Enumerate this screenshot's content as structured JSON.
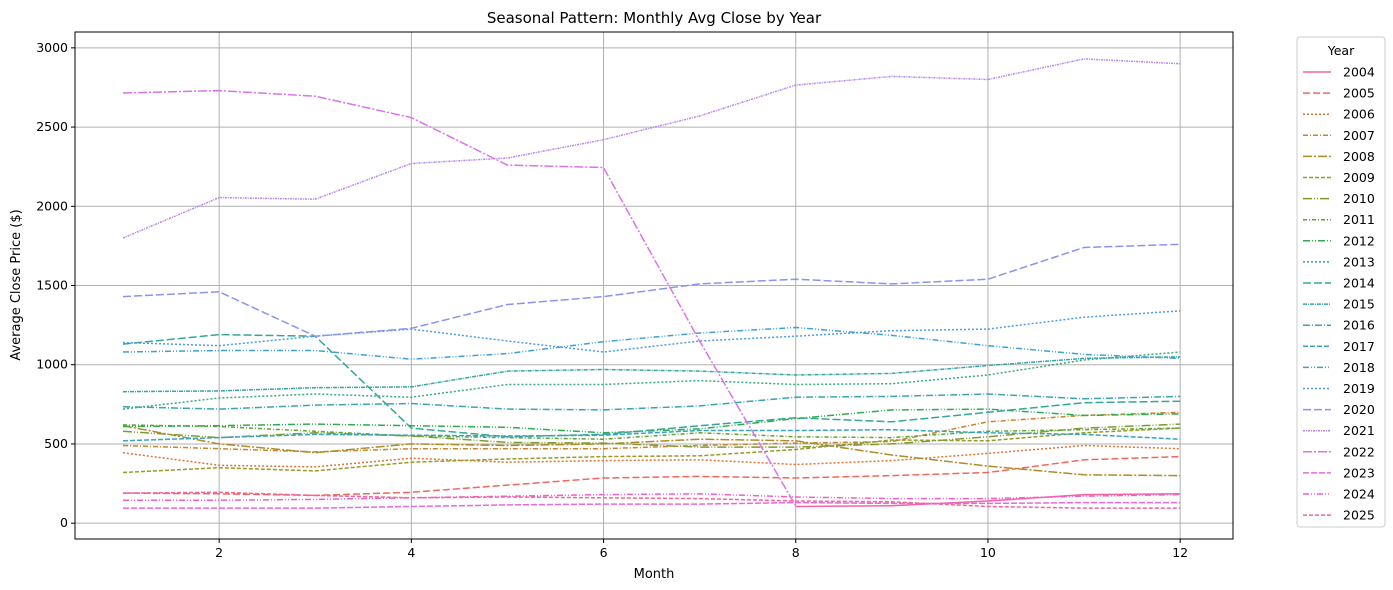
{
  "chart_data": {
    "type": "line",
    "title": "Seasonal Pattern: Monthly Avg Close by Year",
    "xlabel": "Month",
    "ylabel": "Average Close Price ($)",
    "xlim": [
      0.5,
      12.55
    ],
    "ylim": [
      -100,
      3100
    ],
    "xticks": [
      2,
      4,
      6,
      8,
      10,
      12
    ],
    "yticks": [
      0,
      500,
      1000,
      1500,
      2000,
      2500,
      3000
    ],
    "grid": true,
    "legend": {
      "title": "Year",
      "placement": "outside-right"
    },
    "x": [
      1,
      2,
      3,
      4,
      5,
      6,
      7,
      8,
      9,
      10,
      11,
      12
    ],
    "series": [
      {
        "name": "2004",
        "color": "#f564a1",
        "dash": "",
        "values": [
          null,
          null,
          null,
          null,
          null,
          null,
          null,
          105,
          110,
          140,
          180,
          185
        ]
      },
      {
        "name": "2005",
        "color": "#f0685d",
        "dash": "7,3",
        "values": [
          190,
          185,
          175,
          195,
          240,
          285,
          295,
          285,
          300,
          320,
          400,
          420
        ]
      },
      {
        "name": "2006",
        "color": "#dc7533",
        "dash": "2,2",
        "values": [
          445,
          365,
          355,
          410,
          385,
          395,
          400,
          370,
          395,
          440,
          490,
          470
        ]
      },
      {
        "name": "2007",
        "color": "#c5852e",
        "dash": "5,2,1,2",
        "values": [
          490,
          470,
          450,
          470,
          470,
          470,
          490,
          505,
          515,
          640,
          680,
          700
        ]
      },
      {
        "name": "2008",
        "color": "#ad8d26",
        "dash": "9,2,2,2",
        "values": [
          615,
          500,
          445,
          500,
          490,
          500,
          530,
          520,
          430,
          360,
          305,
          300
        ]
      },
      {
        "name": "2009",
        "color": "#999a27",
        "dash": "4,2",
        "values": [
          320,
          350,
          330,
          385,
          405,
          420,
          425,
          465,
          525,
          520,
          570,
          600
        ]
      },
      {
        "name": "2010",
        "color": "#829b31",
        "dash": "9,2,1,2,1,2",
        "values": [
          580,
          540,
          570,
          550,
          510,
          505,
          480,
          480,
          500,
          545,
          600,
          625
        ]
      },
      {
        "name": "2011",
        "color": "#5ea52f",
        "dash": "4,2,1,2",
        "values": [
          620,
          610,
          580,
          550,
          540,
          530,
          570,
          545,
          540,
          580,
          590,
          600
        ]
      },
      {
        "name": "2012",
        "color": "#2eac4e",
        "dash": "7,2,1,2,1,2",
        "values": [
          610,
          615,
          625,
          615,
          605,
          570,
          595,
          660,
          715,
          720,
          680,
          690
        ]
      },
      {
        "name": "2013",
        "color": "#36aa7d",
        "dash": "2,2",
        "values": [
          720,
          790,
          815,
          795,
          875,
          875,
          900,
          875,
          880,
          935,
          1030,
          1080
        ]
      },
      {
        "name": "2014",
        "color": "#33a894",
        "dash": "8,3",
        "values": [
          1130,
          1190,
          1180,
          600,
          545,
          560,
          615,
          665,
          640,
          700,
          760,
          770
        ]
      },
      {
        "name": "2015",
        "color": "#34a6a4",
        "dash": "4,1,1,1",
        "values": [
          830,
          835,
          855,
          860,
          960,
          970,
          960,
          935,
          945,
          995,
          1040,
          1050
        ]
      },
      {
        "name": "2016",
        "color": "#37a5b3",
        "dash": "7,2,1,2",
        "values": [
          735,
          720,
          745,
          755,
          720,
          715,
          740,
          795,
          800,
          815,
          785,
          800
        ]
      },
      {
        "name": "2017",
        "color": "#39a3c4",
        "dash": "5,2",
        "values": [
          520,
          540,
          560,
          555,
          550,
          555,
          585,
          585,
          590,
          570,
          560,
          530
        ]
      },
      {
        "name": "2018",
        "color": "#3ea1d6",
        "dash": "6,2,1,2,1,2",
        "values": [
          1080,
          1090,
          1090,
          1035,
          1070,
          1145,
          1200,
          1235,
          1185,
          1120,
          1065,
          1040
        ]
      },
      {
        "name": "2019",
        "color": "#4a9de6",
        "dash": "2,2",
        "values": [
          1140,
          1120,
          1180,
          1225,
          1150,
          1080,
          1150,
          1180,
          1215,
          1225,
          1300,
          1340
        ]
      },
      {
        "name": "2020",
        "color": "#8b93f0",
        "dash": "8,3",
        "values": [
          1430,
          1460,
          1180,
          1230,
          1380,
          1430,
          1510,
          1540,
          1510,
          1540,
          1740,
          1760
        ]
      },
      {
        "name": "2021",
        "color": "#b782f0",
        "dash": "2,1,1,1",
        "values": [
          1800,
          2055,
          2045,
          2270,
          2305,
          2420,
          2570,
          2765,
          2820,
          2800,
          2930,
          2900
        ]
      },
      {
        "name": "2022",
        "color": "#db72ec",
        "dash": "9,2,2,2",
        "values": [
          2715,
          2730,
          2695,
          2560,
          2260,
          2245,
          1150,
          110,
          null,
          null,
          null,
          null
        ]
      },
      {
        "name": "2023",
        "color": "#ea67dc",
        "dash": "6,2",
        "values": [
          95,
          95,
          95,
          105,
          115,
          120,
          120,
          130,
          125,
          125,
          130,
          130
        ]
      },
      {
        "name": "2024",
        "color": "#f35fc6",
        "dash": "6,2,1,2,1,2",
        "values": [
          145,
          145,
          150,
          160,
          170,
          180,
          185,
          165,
          155,
          155,
          170,
          180
        ]
      },
      {
        "name": "2025",
        "color": "#f5649a",
        "dash": "4,2",
        "values": [
          190,
          195,
          175,
          160,
          165,
          160,
          155,
          140,
          135,
          105,
          95,
          95
        ]
      }
    ]
  }
}
